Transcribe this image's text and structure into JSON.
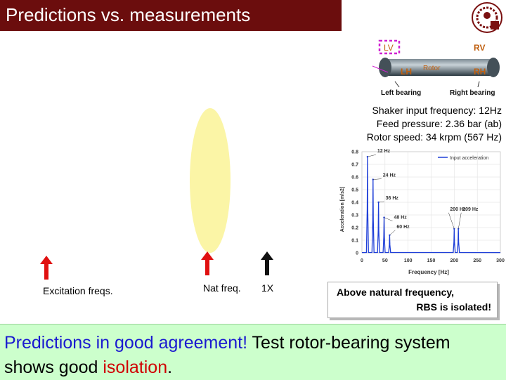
{
  "title": "Predictions vs. measurements",
  "rotor_diagram": {
    "lv": "LV",
    "rv": "RV",
    "lh": "LH",
    "rh": "RH",
    "rotor": "Rotor",
    "left_bearing": "Left bearing",
    "right_bearing": "Right bearing"
  },
  "shaker_info": {
    "line1": "Shaker input frequency: 12Hz",
    "line2": "Feed pressure: 2.36 bar (ab)",
    "line3": "Rotor speed: 34 krpm (567 Hz)"
  },
  "chart_data": {
    "type": "line",
    "xlabel": "Frequency [Hz]",
    "ylabel": "Acceleration [m/s2]",
    "xlim": [
      0,
      300
    ],
    "ylim": [
      0,
      0.8
    ],
    "xticks": [
      0,
      50,
      100,
      150,
      200,
      250,
      300
    ],
    "yticks": [
      0,
      0.1,
      0.2,
      0.3,
      0.4,
      0.5,
      0.6,
      0.7,
      0.8
    ],
    "legend": "Input acceleration",
    "legend_position": "top-right",
    "peaks": [
      {
        "x": 12,
        "y": 0.76,
        "label": "12 Hz"
      },
      {
        "x": 24,
        "y": 0.58,
        "label": "24 Hz"
      },
      {
        "x": 36,
        "y": 0.4,
        "label": "36 Hz"
      },
      {
        "x": 48,
        "y": 0.28,
        "label": "48 Hz"
      },
      {
        "x": 60,
        "y": 0.14,
        "label": "60 Hz"
      },
      {
        "x": 200,
        "y": 0.19,
        "label": "200 Hz"
      },
      {
        "x": 209,
        "y": 0.19,
        "label": "209 Hz"
      }
    ],
    "line_color": "#1f3fd8"
  },
  "labels": {
    "excitation": "Excitation freqs.",
    "nat_freq": "Nat freq.",
    "onex": "1X"
  },
  "above_box": {
    "line1": "Above natural frequency,",
    "line2": "RBS is isolated!"
  },
  "bottom": {
    "part1": "Predictions in good agreement!",
    "part2": " Test rotor-bearing system shows good ",
    "part3": "isolation",
    "part4": "."
  },
  "colors": {
    "title_bg": "#6b0d0d",
    "arrow_red": "#e01010",
    "ellipse": "#fbf5a6",
    "bottom_bg": "#ccffcc"
  }
}
